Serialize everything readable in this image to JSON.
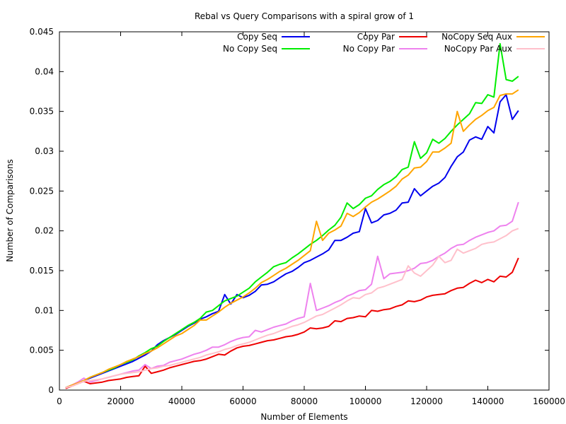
{
  "chart_data": {
    "type": "line",
    "title": "Rebal vs Query Comparisons with a spiral grow of 1",
    "xlabel": "Number of Elements",
    "ylabel": "Number of Comparisons",
    "xlim": [
      0,
      160000
    ],
    "ylim": [
      0,
      0.045
    ],
    "xticks": [
      0,
      20000,
      40000,
      60000,
      80000,
      100000,
      120000,
      140000,
      160000
    ],
    "yticks": [
      0,
      0.005,
      0.01,
      0.015,
      0.02,
      0.025,
      0.03,
      0.035,
      0.04,
      0.045
    ],
    "grid": false,
    "legend_position": "top-right",
    "x": [
      2000,
      4000,
      6000,
      8000,
      10000,
      12000,
      14000,
      16000,
      18000,
      20000,
      22000,
      24000,
      26000,
      28000,
      30000,
      32000,
      34000,
      36000,
      38000,
      40000,
      42000,
      44000,
      46000,
      48000,
      50000,
      52000,
      54000,
      56000,
      58000,
      60000,
      62000,
      64000,
      66000,
      68000,
      70000,
      72000,
      74000,
      76000,
      78000,
      80000,
      82000,
      84000,
      86000,
      88000,
      90000,
      92000,
      94000,
      96000,
      98000,
      100000,
      102000,
      104000,
      106000,
      108000,
      110000,
      112000,
      114000,
      116000,
      118000,
      120000,
      122000,
      124000,
      126000,
      128000,
      130000,
      132000,
      134000,
      136000,
      138000,
      140000,
      142000,
      144000,
      146000,
      148000,
      150000
    ],
    "series": [
      {
        "name": "Copy Seq",
        "color": "#0000ee",
        "values": [
          0.0003,
          0.0006,
          0.0009,
          0.0012,
          0.0015,
          0.0018,
          0.0021,
          0.0024,
          0.0027,
          0.003,
          0.0033,
          0.0036,
          0.004,
          0.0044,
          0.0049,
          0.0057,
          0.0062,
          0.0066,
          0.007,
          0.0075,
          0.008,
          0.0084,
          0.0089,
          0.0092,
          0.0096,
          0.0099,
          0.012,
          0.0108,
          0.012,
          0.0116,
          0.0119,
          0.0124,
          0.0132,
          0.0133,
          0.0136,
          0.0141,
          0.0146,
          0.0149,
          0.0154,
          0.016,
          0.0163,
          0.0167,
          0.0171,
          0.0176,
          0.0188,
          0.0188,
          0.0192,
          0.0197,
          0.0199,
          0.0228,
          0.021,
          0.0213,
          0.022,
          0.0222,
          0.0226,
          0.0235,
          0.0236,
          0.0253,
          0.0244,
          0.025,
          0.0256,
          0.026,
          0.0267,
          0.0281,
          0.0293,
          0.0299,
          0.0314,
          0.0318,
          0.0315,
          0.0331,
          0.0323,
          0.0362,
          0.0371,
          0.034,
          0.0351
        ]
      },
      {
        "name": "No Copy Seq",
        "color": "#00ee00",
        "values": [
          0.0003,
          0.0006,
          0.0009,
          0.0012,
          0.0016,
          0.0019,
          0.0022,
          0.0025,
          0.0028,
          0.0032,
          0.0035,
          0.0038,
          0.0043,
          0.0047,
          0.0052,
          0.0055,
          0.0061,
          0.0066,
          0.0071,
          0.0076,
          0.0081,
          0.0085,
          0.009,
          0.0098,
          0.01,
          0.0106,
          0.0112,
          0.0115,
          0.0118,
          0.0123,
          0.0128,
          0.0136,
          0.0142,
          0.0148,
          0.0155,
          0.0158,
          0.016,
          0.0166,
          0.0171,
          0.0177,
          0.0183,
          0.0188,
          0.0194,
          0.0201,
          0.0207,
          0.0217,
          0.0235,
          0.0228,
          0.0233,
          0.0241,
          0.0244,
          0.0252,
          0.0258,
          0.0262,
          0.0268,
          0.0277,
          0.028,
          0.0312,
          0.0291,
          0.0298,
          0.0315,
          0.031,
          0.0316,
          0.0325,
          0.0333,
          0.034,
          0.0347,
          0.0361,
          0.036,
          0.0371,
          0.0368,
          0.0435,
          0.039,
          0.0388,
          0.0394
        ]
      },
      {
        "name": "Copy Par",
        "color": "#ee0000",
        "values": [
          0.0002,
          0.0005,
          0.0008,
          0.0011,
          0.0008,
          0.0009,
          0.001,
          0.0012,
          0.0013,
          0.0014,
          0.0016,
          0.0017,
          0.0018,
          0.003,
          0.0021,
          0.0023,
          0.0025,
          0.0028,
          0.003,
          0.0032,
          0.0034,
          0.0036,
          0.0037,
          0.0039,
          0.0042,
          0.0045,
          0.0044,
          0.0049,
          0.0053,
          0.0055,
          0.0056,
          0.0058,
          0.006,
          0.0062,
          0.0063,
          0.0065,
          0.0067,
          0.0068,
          0.007,
          0.0073,
          0.0078,
          0.0077,
          0.0078,
          0.008,
          0.0087,
          0.0086,
          0.009,
          0.0091,
          0.0093,
          0.0092,
          0.01,
          0.0099,
          0.0101,
          0.0102,
          0.0105,
          0.0107,
          0.0112,
          0.0111,
          0.0113,
          0.0117,
          0.0119,
          0.012,
          0.0121,
          0.0125,
          0.0128,
          0.0129,
          0.0134,
          0.0138,
          0.0135,
          0.0139,
          0.0136,
          0.0143,
          0.0142,
          0.0148,
          0.0166
        ]
      },
      {
        "name": "No Copy Par",
        "color": "#ee82ee",
        "values": [
          0.0003,
          0.0006,
          0.001,
          0.0015,
          0.001,
          0.0012,
          0.0014,
          0.0016,
          0.0018,
          0.002,
          0.0022,
          0.0024,
          0.0025,
          0.0032,
          0.0027,
          0.003,
          0.0031,
          0.0035,
          0.0037,
          0.0039,
          0.0042,
          0.0045,
          0.0047,
          0.005,
          0.0054,
          0.0054,
          0.0057,
          0.0061,
          0.0064,
          0.0066,
          0.0067,
          0.0075,
          0.0073,
          0.0076,
          0.0079,
          0.0081,
          0.0083,
          0.0087,
          0.009,
          0.0092,
          0.0134,
          0.01,
          0.0103,
          0.0106,
          0.011,
          0.0113,
          0.0118,
          0.0121,
          0.0125,
          0.0126,
          0.0133,
          0.0168,
          0.014,
          0.0146,
          0.0147,
          0.0148,
          0.015,
          0.0153,
          0.0159,
          0.016,
          0.0163,
          0.0168,
          0.0172,
          0.0178,
          0.0182,
          0.0183,
          0.0188,
          0.0192,
          0.0195,
          0.0198,
          0.02,
          0.0206,
          0.0207,
          0.0212,
          0.0236
        ]
      },
      {
        "name": "NoCopy Seq Aux",
        "color": "#ffa500",
        "values": [
          0.0003,
          0.0006,
          0.0009,
          0.0012,
          0.0016,
          0.0019,
          0.0022,
          0.0026,
          0.0029,
          0.0032,
          0.0036,
          0.0039,
          0.0042,
          0.0046,
          0.0049,
          0.0053,
          0.0058,
          0.0063,
          0.0068,
          0.0071,
          0.0076,
          0.0081,
          0.0088,
          0.0088,
          0.0093,
          0.0098,
          0.0104,
          0.0109,
          0.0113,
          0.0117,
          0.0122,
          0.0128,
          0.0135,
          0.0139,
          0.0144,
          0.0149,
          0.0153,
          0.0158,
          0.0163,
          0.0169,
          0.0175,
          0.0212,
          0.0188,
          0.0197,
          0.0201,
          0.0206,
          0.0222,
          0.0218,
          0.0223,
          0.023,
          0.0236,
          0.024,
          0.0245,
          0.025,
          0.0256,
          0.0265,
          0.027,
          0.0279,
          0.028,
          0.0287,
          0.0299,
          0.0299,
          0.0304,
          0.031,
          0.035,
          0.0325,
          0.0333,
          0.034,
          0.0345,
          0.0351,
          0.0355,
          0.037,
          0.0372,
          0.0372,
          0.0377
        ]
      },
      {
        "name": "NoCopy Par Aux",
        "color": "#ffc0cb",
        "values": [
          0.0003,
          0.0005,
          0.0008,
          0.0011,
          0.0012,
          0.0013,
          0.0014,
          0.0016,
          0.0018,
          0.002,
          0.0021,
          0.0022,
          0.0023,
          0.0025,
          0.0027,
          0.0028,
          0.003,
          0.0031,
          0.0033,
          0.0035,
          0.0037,
          0.0039,
          0.0041,
          0.0044,
          0.0046,
          0.0048,
          0.0051,
          0.0053,
          0.0056,
          0.0058,
          0.006,
          0.0063,
          0.0066,
          0.0069,
          0.0071,
          0.0074,
          0.0077,
          0.008,
          0.0082,
          0.0085,
          0.0089,
          0.0093,
          0.0095,
          0.0099,
          0.0103,
          0.0107,
          0.0112,
          0.0116,
          0.0115,
          0.012,
          0.0122,
          0.0128,
          0.013,
          0.0133,
          0.0136,
          0.0139,
          0.0156,
          0.0147,
          0.0143,
          0.015,
          0.0157,
          0.0168,
          0.016,
          0.0163,
          0.0177,
          0.0172,
          0.0175,
          0.0178,
          0.0183,
          0.0185,
          0.0186,
          0.019,
          0.0194,
          0.02,
          0.0203
        ]
      }
    ]
  }
}
